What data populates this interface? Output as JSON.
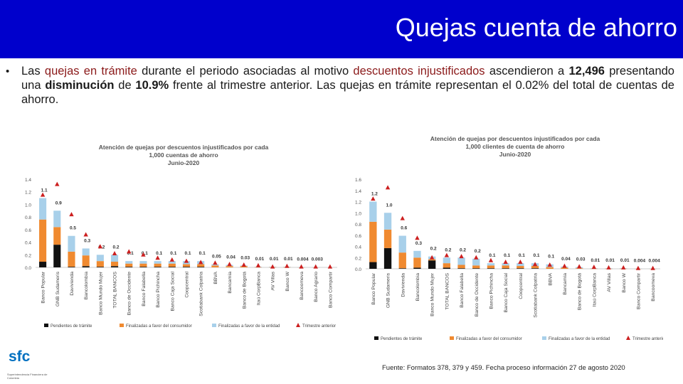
{
  "header": {
    "title": "Quejas cuenta de ahorro"
  },
  "paragraph": {
    "bullet": "•",
    "p1": "Las ",
    "p2": "quejas en trámite",
    "p3": " durante el periodo asociadas al motivo ",
    "p4": "descuentos injustificados",
    "p5": "  ascendieron a ",
    "p6": "12,496",
    "p7": " presentando una ",
    "p8": "disminución",
    "p9": " de ",
    "p10": "10.9%",
    "p11": " frente al trimestre anterior. Las quejas en trámite representan el 0.02% del total de cuentas de ahorro."
  },
  "logo": {
    "text": "sfc",
    "subtitle": "Superintendencia Financiera de Colombia"
  },
  "source": "Fuente: Formatos 378, 379 y 459. Fecha proceso información 27 de agosto 2020",
  "colors": {
    "header": "#0000cc",
    "pending": "#111111",
    "favor_consumer": "#f08a30",
    "favor_entity": "#a8d0ea",
    "prev_quarter": "#cc1f1f"
  },
  "chart_data": [
    {
      "type": "bar",
      "stacked": true,
      "title_lines": [
        "Atención de quejas por descuentos injustificados por cada",
        "1,000 cuentas de ahorro",
        "Junio-2020"
      ],
      "ylim": [
        0,
        1.4
      ],
      "yticks": [
        "1.4",
        "1.2",
        "1.0",
        "0.8",
        "0.6",
        "0.4",
        "0.2",
        "0.0"
      ],
      "categories": [
        "Banco Popular",
        "GNB Sudameris",
        "Davivienda",
        "Bancolombia",
        "Banco Mundo Mujer",
        "TOTAL BANCOS",
        "Banco de Occidente",
        "Banco Falabella",
        "Banco Pichincha",
        "Banco Caja Social",
        "Coopcentral",
        "Scotiabank Colpatria",
        "BBVA",
        "Bancamía",
        "Banco de Bogotá",
        "Itaú CorpBanca",
        "AV Villas",
        "Banco W",
        "Bancoomeva",
        "Banco Agrario",
        "Banco Compartir"
      ],
      "totals_labels": [
        "1.1",
        "0.9",
        "0.5",
        "0.3",
        "0.2",
        "0.2",
        "0.1",
        "0.1",
        "0.1",
        "0.1",
        "0.1",
        "0.1",
        "0.05",
        "0.04",
        "0.03",
        "0.01",
        "0.01",
        "0.01",
        "0.004",
        "0.003",
        ""
      ],
      "series": [
        {
          "name": "Pendientes de trámite",
          "values": [
            0.09,
            0.36,
            0.01,
            0.02,
            0.01,
            0.02,
            0.01,
            0.01,
            0.01,
            0.01,
            0.01,
            0.01,
            0.0,
            0.0,
            0.0,
            0.0,
            0.0,
            0.0,
            0.0,
            0.0,
            0.0
          ]
        },
        {
          "name": "Finalizadas a favor del consumidor",
          "values": [
            0.67,
            0.28,
            0.24,
            0.17,
            0.09,
            0.07,
            0.05,
            0.05,
            0.05,
            0.05,
            0.04,
            0.04,
            0.03,
            0.02,
            0.02,
            0.005,
            0.005,
            0.005,
            0.002,
            0.001,
            0.0
          ]
        },
        {
          "name": "Finalizadas a favor de la entidad",
          "values": [
            0.34,
            0.26,
            0.25,
            0.11,
            0.1,
            0.11,
            0.04,
            0.04,
            0.04,
            0.04,
            0.05,
            0.05,
            0.02,
            0.02,
            0.01,
            0.005,
            0.005,
            0.005,
            0.002,
            0.002,
            0.0
          ]
        }
      ],
      "previous_quarter": [
        1.15,
        1.32,
        0.84,
        0.52,
        0.33,
        0.22,
        0.25,
        0.2,
        0.15,
        0.12,
        0.1,
        0.08,
        0.07,
        0.05,
        0.04,
        0.03,
        0.01,
        0.02,
        0.01,
        0.01,
        0.01
      ],
      "legend": [
        "Pendientes de trámite",
        "Finalizadas a favor del consumidor",
        "Finalizadas a favor de la entidad",
        "Trimestre anterior"
      ]
    },
    {
      "type": "bar",
      "stacked": true,
      "title_lines": [
        "Atención de quejas por descuentos injustificados por cada",
        "1,000 clientes de cuenta de ahorro",
        "Junio-2020"
      ],
      "ylim": [
        0,
        1.6
      ],
      "yticks": [
        "1.6",
        "1.4",
        "1.2",
        "1.0",
        "0.8",
        "0.6",
        "0.4",
        "0.2",
        "0.0"
      ],
      "categories": [
        "Banco Popular",
        "GNB Sudameris",
        "Davivienda",
        "Bancolombia",
        "Banco Mundo Mujer",
        "TOTAL BANCOS",
        "Banco Falabella",
        "Banco de Occidente",
        "Banco Pichincha",
        "Banco Caja Social",
        "Coopcentral",
        "Scotiabank Colpatria",
        "BBVA",
        "Bancamía",
        "Banco de Bogotá",
        "Itaú CorpBanca",
        "AV Villas",
        "Banco W",
        "Banco Compartir",
        "Bancoomeva"
      ],
      "totals_labels": [
        "1.2",
        "1.0",
        "0.6",
        "0.3",
        "0.2",
        "0.2",
        "0.2",
        "0.2",
        "0.1",
        "0.1",
        "0.1",
        "0.1",
        "0.1",
        "0.04",
        "0.03",
        "0.01",
        "0.01",
        "0.01",
        "0.004",
        "0.004"
      ],
      "series": [
        {
          "name": "Pendientes de trámite",
          "values": [
            0.12,
            0.37,
            0.01,
            0.02,
            0.15,
            0.02,
            0.01,
            0.01,
            0.01,
            0.01,
            0.01,
            0.01,
            0.0,
            0.0,
            0.0,
            0.0,
            0.0,
            0.0,
            0.0,
            0.0
          ]
        },
        {
          "name": "Finalizadas a favor del consumidor",
          "values": [
            0.72,
            0.33,
            0.28,
            0.18,
            0.02,
            0.08,
            0.06,
            0.05,
            0.05,
            0.05,
            0.04,
            0.04,
            0.03,
            0.02,
            0.01,
            0.005,
            0.005,
            0.005,
            0.002,
            0.002
          ]
        },
        {
          "name": "Finalizadas a favor de la entidad",
          "values": [
            0.36,
            0.3,
            0.3,
            0.12,
            0.05,
            0.1,
            0.13,
            0.12,
            0.04,
            0.04,
            0.05,
            0.05,
            0.05,
            0.02,
            0.02,
            0.005,
            0.005,
            0.005,
            0.002,
            0.002
          ]
        }
      ],
      "previous_quarter": [
        1.25,
        1.45,
        0.9,
        0.55,
        0.2,
        0.24,
        0.22,
        0.2,
        0.15,
        0.12,
        0.12,
        0.08,
        0.07,
        0.05,
        0.04,
        0.03,
        0.02,
        0.02,
        0.01,
        0.01
      ],
      "legend": [
        "Pendientes de trámite",
        "Finalizadas a favor del consumidor",
        "Finalizadas a favor de la entidad",
        "Trimestre anterior"
      ]
    }
  ]
}
